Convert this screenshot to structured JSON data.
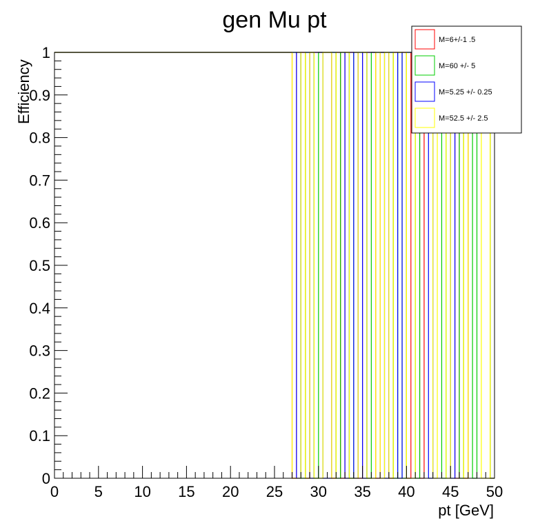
{
  "chart_data": {
    "type": "line",
    "title": "gen Mu pt",
    "xlabel": "pt [GeV]",
    "ylabel": "Efficiency",
    "xlim": [
      0,
      50
    ],
    "ylim": [
      0,
      1
    ],
    "x_ticks": [
      "0",
      "5",
      "10",
      "15",
      "20",
      "25",
      "30",
      "35",
      "40",
      "45",
      "50"
    ],
    "y_ticks": [
      "0",
      "0.1",
      "0.2",
      "0.3",
      "0.4",
      "0.5",
      "0.6",
      "0.7",
      "0.8",
      "0.9",
      "1"
    ],
    "grid": false,
    "legend_position": "top-right",
    "bin_width": 0.5,
    "series": [
      {
        "name": "M=6+/-1 .5",
        "color": "#ff0000",
        "bins_at_zero": [
          27,
          28.5,
          31.5,
          32.5,
          34.5,
          36.5,
          38,
          40,
          41.5,
          45.5,
          46.5,
          49.5
        ]
      },
      {
        "name": "M=60 +/- 5",
        "color": "#00cc00",
        "bins_at_zero": [
          28,
          29.5,
          32,
          33.5,
          35.5,
          38.5,
          39.5,
          41,
          44,
          46,
          47.5,
          49.5
        ]
      },
      {
        "name": "M=5.25 +/- 0.25",
        "color": "#0000ff",
        "bins_at_zero": [
          27.5,
          29,
          30.5,
          31,
          33,
          34,
          35,
          37.5,
          39,
          42.5,
          45
        ]
      },
      {
        "name": "M=52.5 +/- 2.5",
        "color": "#ffff00",
        "bins_at_zero": [
          27,
          27.5,
          28.5,
          29.5,
          30,
          31.5,
          33.5,
          34,
          35.5,
          36,
          37,
          38,
          40,
          40.5,
          43,
          44.5,
          46.5,
          48.5,
          49
        ]
      }
    ]
  }
}
